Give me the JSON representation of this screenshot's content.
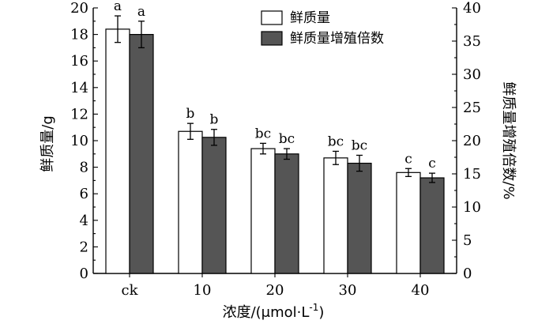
{
  "chart_data": {
    "type": "bar",
    "categories": [
      "ck",
      "10",
      "20",
      "30",
      "40"
    ],
    "series": [
      {
        "name": "鲜质量",
        "axis": "left",
        "values": [
          18.4,
          10.7,
          9.4,
          8.7,
          7.6
        ],
        "errors": [
          1.0,
          0.6,
          0.4,
          0.5,
          0.3
        ],
        "labels": [
          "a",
          "b",
          "bc",
          "bc",
          "c"
        ],
        "color": "#ffffff"
      },
      {
        "name": "鲜质量增殖倍数",
        "axis": "right",
        "values": [
          36.0,
          20.5,
          18.0,
          16.6,
          14.4
        ],
        "errors": [
          2.0,
          1.2,
          0.8,
          1.2,
          0.7
        ],
        "labels": [
          "a",
          "b",
          "bc",
          "bc",
          "c"
        ],
        "color": "#555555"
      }
    ],
    "xlabel": "浓度/(μmol·L",
    "xlabel_sup": "-1",
    "xlabel_end": ")",
    "ylabel": "鲜质量/g",
    "ylabel_right": "鲜质量增殖倍数/%",
    "ylim": [
      0,
      20
    ],
    "ylim_right": [
      0,
      40
    ],
    "yticks": [
      "0",
      "2",
      "4",
      "6",
      "8",
      "10",
      "12",
      "14",
      "16",
      "18",
      "20"
    ],
    "yticks_right": [
      "0",
      "5",
      "10",
      "15",
      "20",
      "25",
      "30",
      "35",
      "40"
    ],
    "legend_position": "top-right",
    "grid": false
  }
}
